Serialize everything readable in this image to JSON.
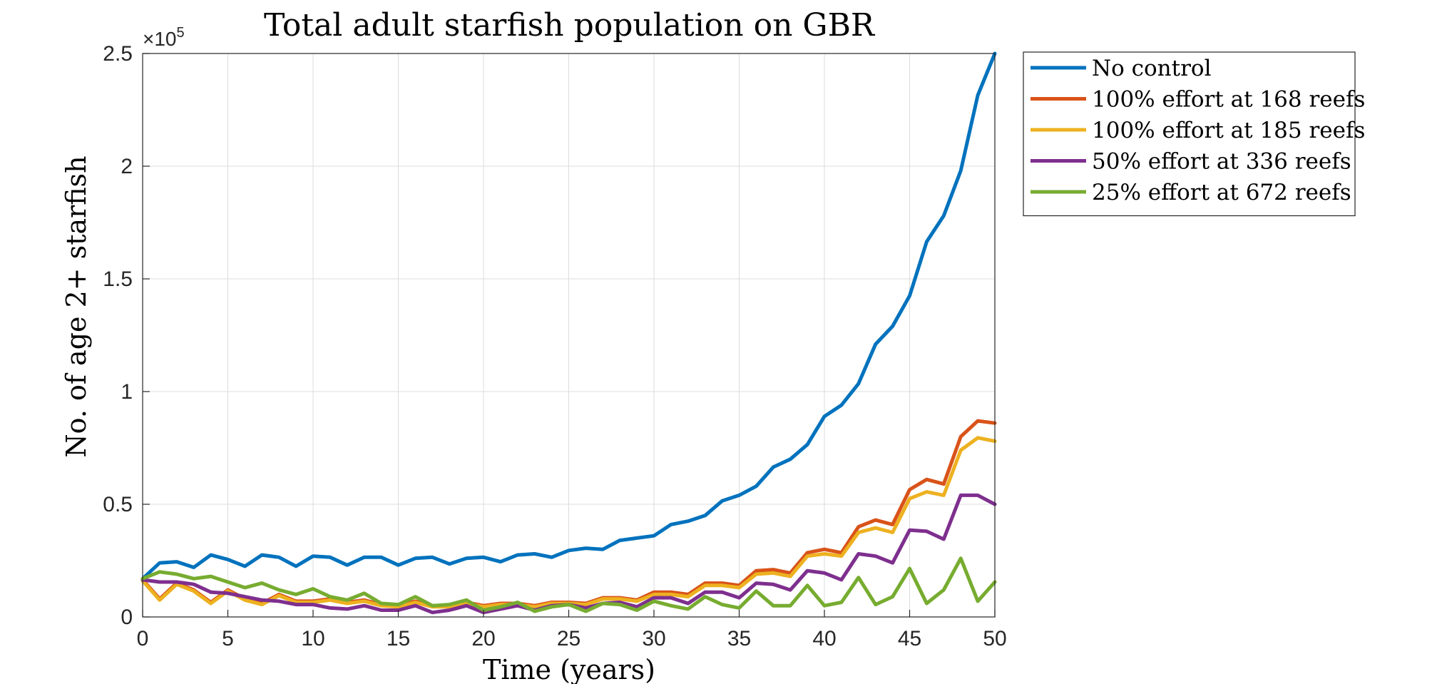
{
  "chart_data": {
    "type": "line",
    "title": "Total adult starfish population on GBR",
    "xlabel": "Time (years)",
    "ylabel": "No. of age 2+ starfish",
    "xlim": [
      0,
      50
    ],
    "ylim": [
      0,
      250000
    ],
    "x_ticks": [
      0,
      5,
      10,
      15,
      20,
      25,
      30,
      35,
      40,
      45,
      50
    ],
    "y_ticks": [
      0,
      50000,
      100000,
      150000,
      200000,
      250000
    ],
    "y_tick_labels": [
      "0",
      "0.5",
      "1",
      "1.5",
      "2",
      "2.5"
    ],
    "y_exponent_base": "×10",
    "y_exponent_power": "5",
    "grid": true,
    "legend_position": "outside-top-right",
    "x": [
      0,
      1,
      2,
      3,
      4,
      5,
      6,
      7,
      8,
      9,
      10,
      11,
      12,
      13,
      14,
      15,
      16,
      17,
      18,
      19,
      20,
      21,
      22,
      23,
      24,
      25,
      26,
      27,
      28,
      29,
      30,
      31,
      32,
      33,
      34,
      35,
      36,
      37,
      38,
      39,
      40,
      41,
      42,
      43,
      44,
      45,
      46,
      47,
      48,
      49,
      50
    ],
    "series": [
      {
        "name": "No control",
        "color": "#0072BD",
        "values": [
          17000,
          24000,
          24500,
          22000,
          27500,
          25500,
          22500,
          27500,
          26500,
          22500,
          27000,
          26500,
          23000,
          26500,
          26500,
          23000,
          26000,
          26500,
          23500,
          26000,
          26500,
          24500,
          27500,
          28000,
          26500,
          29500,
          30500,
          30000,
          34000,
          35000,
          36000,
          41000,
          42500,
          45000,
          51500,
          54000,
          58000,
          66500,
          70000,
          76500,
          89000,
          94000,
          103500,
          121000,
          129000,
          142500,
          166500,
          178000,
          198000,
          231500,
          250000
        ]
      },
      {
        "name": "100% effort at 168 reefs",
        "color": "#D95319",
        "values": [
          16500,
          8000,
          15000,
          12000,
          6500,
          12000,
          8000,
          6000,
          10000,
          7000,
          7000,
          8000,
          6500,
          7500,
          5500,
          5000,
          7000,
          5000,
          5000,
          6500,
          5000,
          6000,
          6000,
          5000,
          6500,
          6500,
          6000,
          8500,
          8500,
          7500,
          11000,
          11000,
          10000,
          15000,
          15000,
          14000,
          20500,
          21000,
          19500,
          28500,
          30000,
          28500,
          40000,
          43000,
          41000,
          56500,
          61000,
          59000,
          80000,
          87000,
          86000
        ]
      },
      {
        "name": "100% effort at 185 reefs",
        "color": "#EDB120",
        "values": [
          16000,
          7500,
          14500,
          11500,
          6000,
          11500,
          7500,
          5500,
          9500,
          6500,
          6500,
          7500,
          6000,
          7000,
          5000,
          4500,
          6500,
          4500,
          4500,
          6000,
          4500,
          5500,
          5500,
          4500,
          6000,
          6000,
          5500,
          8000,
          8000,
          7000,
          10000,
          10000,
          9000,
          14000,
          14000,
          13000,
          19000,
          19500,
          18000,
          27000,
          28000,
          27000,
          37500,
          39500,
          37500,
          52500,
          55500,
          54000,
          74000,
          79500,
          78000
        ]
      },
      {
        "name": "50% effort at 336 reefs",
        "color": "#7E2F8E",
        "values": [
          16500,
          15500,
          15500,
          14500,
          11000,
          10500,
          9000,
          7500,
          7000,
          5500,
          5500,
          4000,
          3500,
          5000,
          3000,
          3000,
          5000,
          2000,
          3000,
          5000,
          2000,
          3500,
          5000,
          3000,
          5000,
          5500,
          4000,
          6000,
          6500,
          4500,
          8500,
          8500,
          6000,
          11000,
          11000,
          8500,
          15000,
          14500,
          12000,
          20500,
          19500,
          16500,
          28000,
          27000,
          24000,
          38500,
          38000,
          34500,
          54000,
          54000,
          50000
        ]
      },
      {
        "name": "25% effort at 672 reefs",
        "color": "#77AC30",
        "values": [
          17000,
          20000,
          19000,
          17000,
          18000,
          15500,
          13000,
          15000,
          12000,
          10000,
          12500,
          9000,
          7500,
          10500,
          6000,
          5500,
          9000,
          5000,
          5500,
          7500,
          3000,
          4500,
          6500,
          2500,
          4500,
          5500,
          2500,
          6000,
          5500,
          3000,
          7000,
          5000,
          3500,
          9000,
          5500,
          4000,
          11500,
          5000,
          5000,
          14000,
          5000,
          6500,
          17500,
          5500,
          9000,
          21500,
          6000,
          12000,
          26000,
          7000,
          15500
        ]
      }
    ]
  }
}
